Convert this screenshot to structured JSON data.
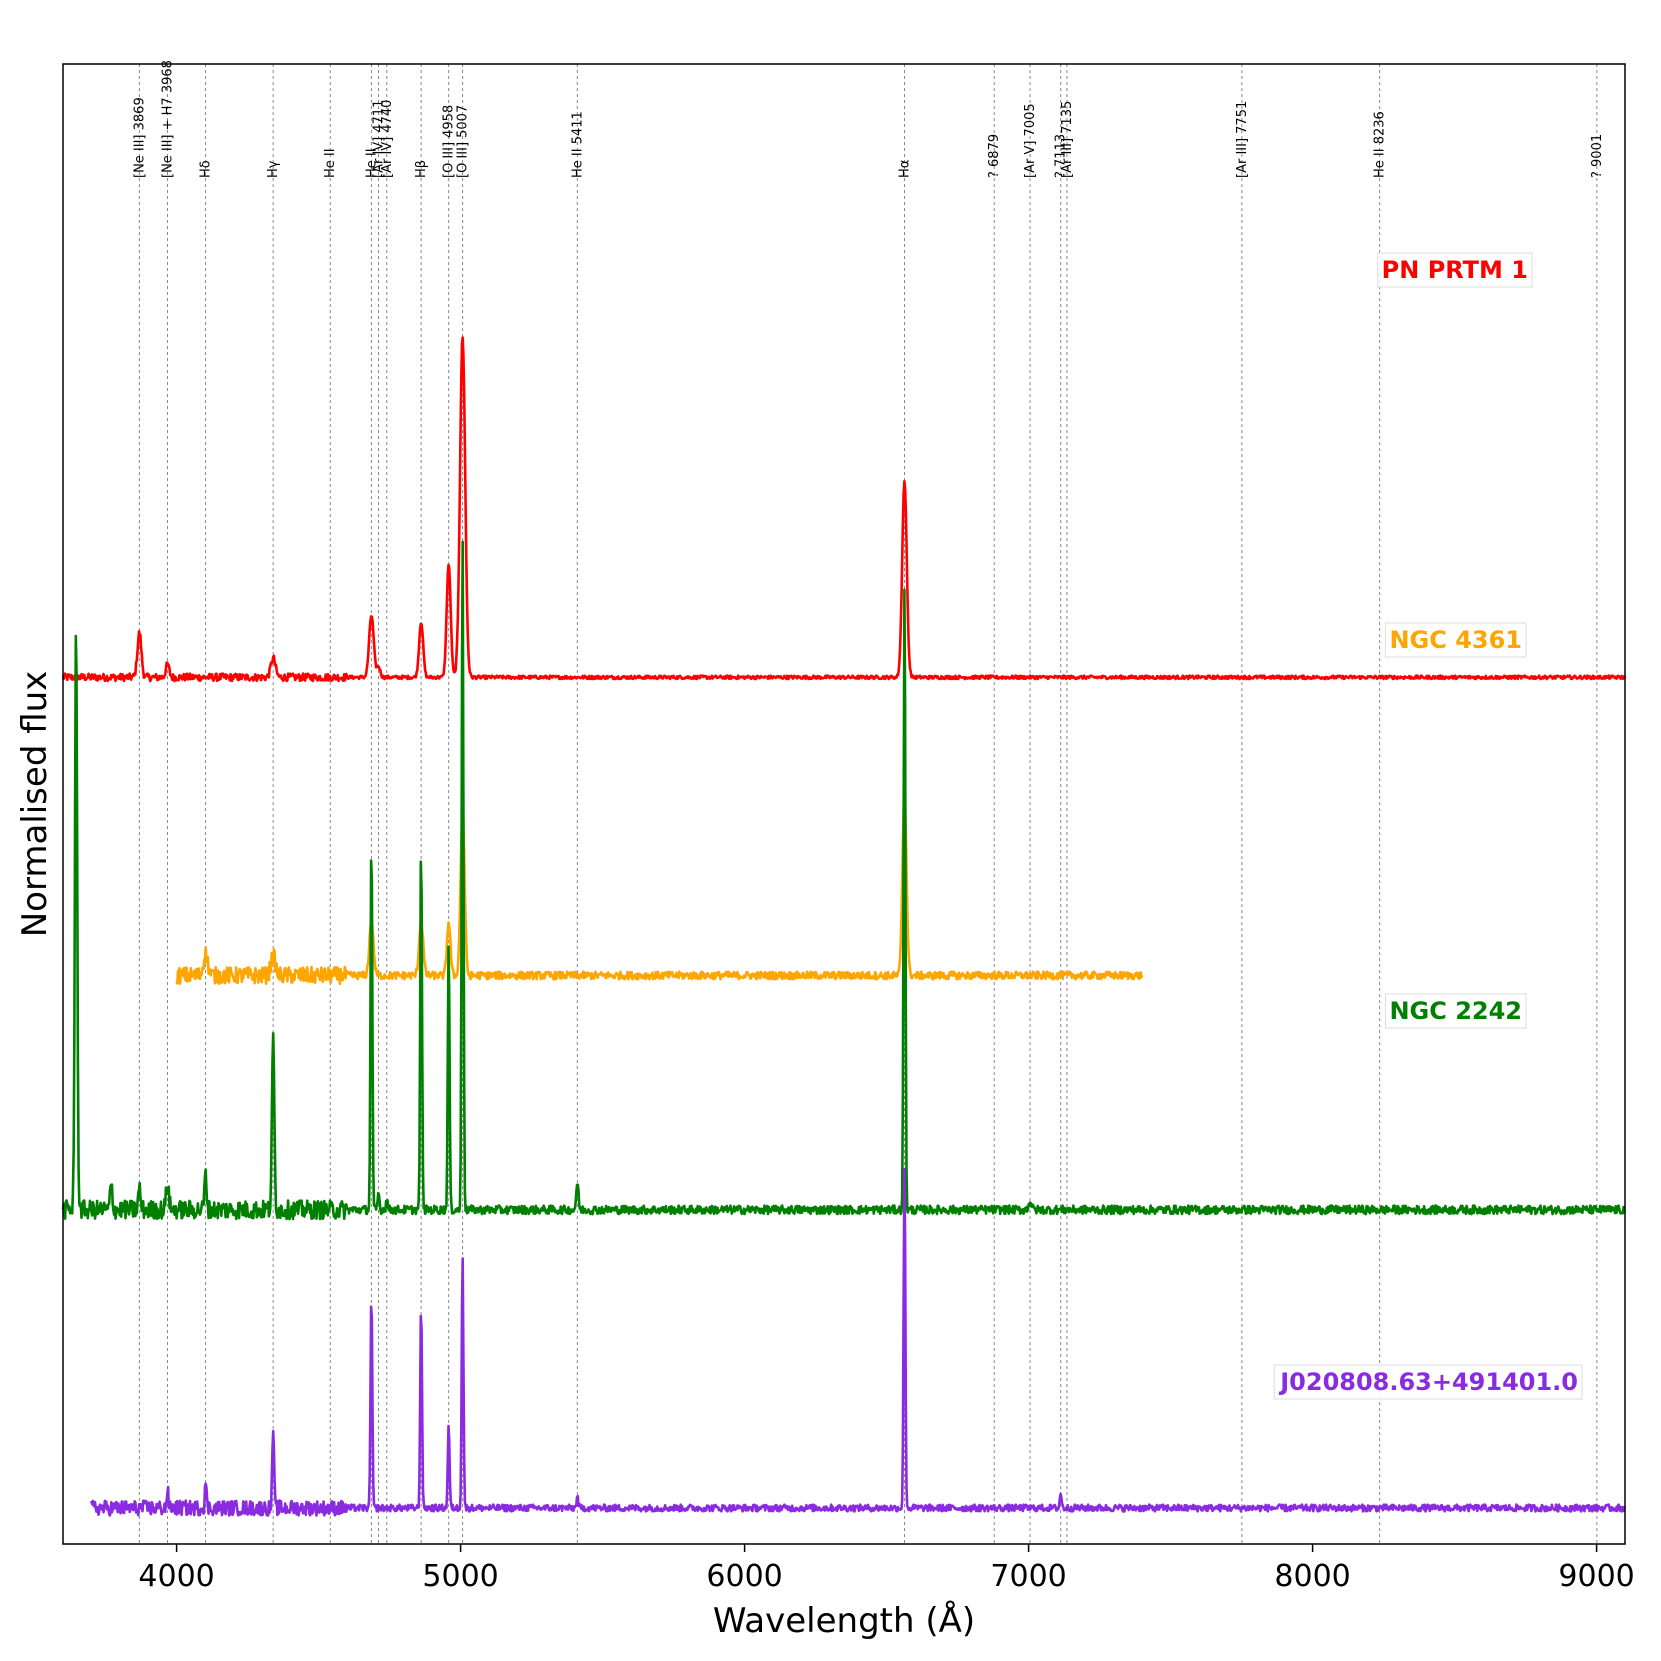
{
  "chart_data": {
    "type": "line",
    "title": "",
    "xlabel": "Wavelength (Å)",
    "ylabel": "Normalised flux",
    "xlim": [
      3600,
      9100
    ],
    "xticks": [
      4000,
      5000,
      6000,
      7000,
      8000,
      9000
    ],
    "yticks": [],
    "grid": false,
    "emission_lines": [
      {
        "wavelength": 3869,
        "label": "[Ne III] 3869"
      },
      {
        "wavelength": 3968,
        "label": "[Ne III] + H7 3968"
      },
      {
        "wavelength": 4102,
        "label": "Hδ"
      },
      {
        "wavelength": 4340,
        "label": "Hγ"
      },
      {
        "wavelength": 4541,
        "label": "He II"
      },
      {
        "wavelength": 4686,
        "label": "He II"
      },
      {
        "wavelength": 4711,
        "label": "[Ar IV] 4711"
      },
      {
        "wavelength": 4740,
        "label": "[Ar IV] 4740"
      },
      {
        "wavelength": 4861,
        "label": "Hβ"
      },
      {
        "wavelength": 4958,
        "label": "[O III] 4958"
      },
      {
        "wavelength": 5007,
        "label": "[O III] 5007"
      },
      {
        "wavelength": 5411,
        "label": "He II 5411"
      },
      {
        "wavelength": 6563,
        "label": "Hα"
      },
      {
        "wavelength": 6879,
        "label": "? 6879"
      },
      {
        "wavelength": 7005,
        "label": "[Ar V] 7005"
      },
      {
        "wavelength": 7113,
        "label": "? 7113"
      },
      {
        "wavelength": 7135,
        "label": "[Ar III] 7135"
      },
      {
        "wavelength": 7751,
        "label": "[Ar III] 7751"
      },
      {
        "wavelength": 8236,
        "label": "He II 8236"
      },
      {
        "wavelength": 9001,
        "label": "? 9001"
      }
    ],
    "series": [
      {
        "name": "PN PRTM 1",
        "color": "#ff0000",
        "baseline": 3.9,
        "range": [
          3600,
          9100
        ],
        "noise": 0.008,
        "peaks": [
          [
            3869,
            0.21,
            7
          ],
          [
            3968,
            0.06,
            6
          ],
          [
            4340,
            0.09,
            8
          ],
          [
            4686,
            0.29,
            8
          ],
          [
            4711,
            0.05,
            6
          ],
          [
            4861,
            0.26,
            7
          ],
          [
            4958,
            0.53,
            7
          ],
          [
            5007,
            1.6,
            9
          ],
          [
            6563,
            0.92,
            8
          ]
        ]
      },
      {
        "name": "NGC 4361",
        "color": "#ffa500",
        "baseline": 2.5,
        "range": [
          4000,
          7400
        ],
        "noise": 0.018,
        "peaks": [
          [
            4102,
            0.1,
            8
          ],
          [
            4340,
            0.09,
            8
          ],
          [
            4686,
            0.26,
            7
          ],
          [
            4861,
            0.26,
            7
          ],
          [
            4958,
            0.25,
            6
          ],
          [
            5007,
            0.78,
            7
          ],
          [
            6563,
            0.86,
            7
          ]
        ]
      },
      {
        "name": "NGC 2242",
        "color": "#008000",
        "baseline": 1.4,
        "range": [
          3600,
          9100
        ],
        "noise": 0.02,
        "peaks": [
          [
            3646,
            2.75,
            4
          ],
          [
            3770,
            0.12,
            4
          ],
          [
            3869,
            0.1,
            4
          ],
          [
            3968,
            0.12,
            5
          ],
          [
            4102,
            0.16,
            4
          ],
          [
            4340,
            0.81,
            4
          ],
          [
            4686,
            1.74,
            3
          ],
          [
            4711,
            0.08,
            3
          ],
          [
            4740,
            0.05,
            3
          ],
          [
            4861,
            1.71,
            3
          ],
          [
            4958,
            1.25,
            3
          ],
          [
            5007,
            3.18,
            3
          ],
          [
            5411,
            0.12,
            4
          ],
          [
            6563,
            2.94,
            3
          ],
          [
            7005,
            0.04,
            5
          ]
        ]
      },
      {
        "name": "J020808.63+491401.0",
        "color": "#8a2be2",
        "baseline": 0.0,
        "range": [
          3700,
          9100
        ],
        "noise": 0.016,
        "peaks": [
          [
            3968,
            0.08,
            3
          ],
          [
            4102,
            0.12,
            3
          ],
          [
            4340,
            0.38,
            3
          ],
          [
            4686,
            1.0,
            3
          ],
          [
            4861,
            0.96,
            3
          ],
          [
            4958,
            0.39,
            3
          ],
          [
            5007,
            1.19,
            3
          ],
          [
            5411,
            0.05,
            3
          ],
          [
            6563,
            1.6,
            3
          ],
          [
            7113,
            0.07,
            3
          ]
        ]
      }
    ]
  }
}
